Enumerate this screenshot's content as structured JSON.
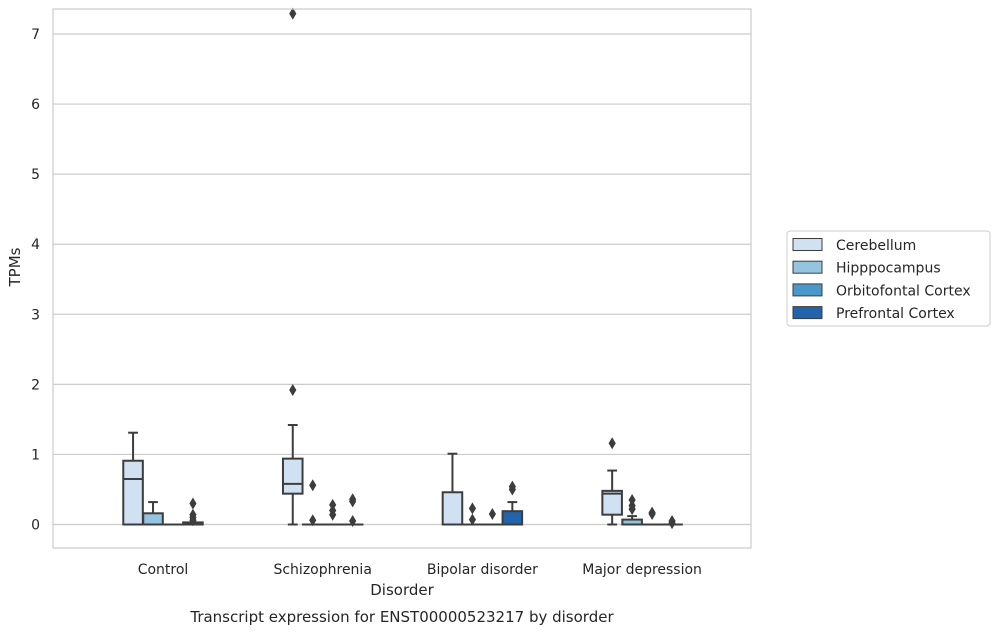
{
  "chart_data": {
    "type": "boxplot",
    "title": "Transcript expression for ENST00000523217 by disorder",
    "xlabel": "Disorder",
    "ylabel": "TPMs",
    "ylim": [
      -0.35,
      7.65
    ],
    "yticks": [
      0,
      1,
      2,
      3,
      4,
      5,
      6,
      7
    ],
    "grid": true,
    "legend_position": "right",
    "categories": [
      "Control",
      "Schizophrenia",
      "Bipolar disorder",
      "Major depression"
    ],
    "series": [
      {
        "name": "Cerebellum",
        "color": "#d0e1f2",
        "boxes": [
          {
            "whislo": 0,
            "q1": 0,
            "med": 0.65,
            "q3": 0.91,
            "whishi": 1.31,
            "fliers": []
          },
          {
            "whislo": 0,
            "q1": 0.44,
            "med": 0.58,
            "q3": 0.94,
            "whishi": 1.42,
            "fliers": [
              1.92,
              7.29
            ]
          },
          {
            "whislo": 0,
            "q1": 0,
            "med": 0,
            "q3": 0.46,
            "whishi": 1.01,
            "fliers": []
          },
          {
            "whislo": 0,
            "q1": 0.14,
            "med": 0.44,
            "q3": 0.48,
            "whishi": 0.77,
            "fliers": [
              1.16
            ]
          }
        ]
      },
      {
        "name": "Hipppocampus",
        "color": "#94c4df",
        "boxes": [
          {
            "whislo": 0,
            "q1": 0,
            "med": 0,
            "q3": 0.16,
            "whishi": 0.32,
            "fliers": []
          },
          {
            "whislo": 0,
            "q1": 0,
            "med": 0,
            "q3": 0,
            "whishi": 0,
            "fliers": [
              0.06,
              0.56
            ]
          },
          {
            "whislo": 0,
            "q1": 0,
            "med": 0,
            "q3": 0,
            "whishi": 0,
            "fliers": [
              0.07,
              0.23
            ]
          },
          {
            "whislo": 0,
            "q1": 0,
            "med": 0,
            "q3": 0.07,
            "whishi": 0.12,
            "fliers": [
              0.22,
              0.27,
              0.35
            ]
          }
        ]
      },
      {
        "name": "Orbitofontal Cortex",
        "color": "#4a98c9",
        "boxes": [
          {
            "whislo": 0,
            "q1": 0,
            "med": 0,
            "q3": 0,
            "whishi": 0,
            "fliers": []
          },
          {
            "whislo": 0,
            "q1": 0,
            "med": 0,
            "q3": 0,
            "whishi": 0,
            "fliers": [
              0.14,
              0.2,
              0.28
            ]
          },
          {
            "whislo": 0,
            "q1": 0,
            "med": 0,
            "q3": 0,
            "whishi": 0,
            "fliers": [
              0.15
            ]
          },
          {
            "whislo": 0,
            "q1": 0,
            "med": 0,
            "q3": 0,
            "whishi": 0,
            "fliers": [
              0.15,
              0.17
            ]
          }
        ]
      },
      {
        "name": "Prefrontal Cortex",
        "color": "#2164ab",
        "boxes": [
          {
            "whislo": 0,
            "q1": 0,
            "med": 0,
            "q3": 0.03,
            "whishi": 0.03,
            "fliers": [
              0.06,
              0.1,
              0.14,
              0.3
            ]
          },
          {
            "whislo": 0,
            "q1": 0,
            "med": 0,
            "q3": 0,
            "whishi": 0,
            "fliers": [
              0.05,
              0.33,
              0.36
            ]
          },
          {
            "whislo": 0,
            "q1": 0,
            "med": 0,
            "q3": 0.19,
            "whishi": 0.32,
            "fliers": [
              0.5,
              0.54
            ]
          },
          {
            "whislo": 0,
            "q1": 0,
            "med": 0,
            "q3": 0,
            "whishi": 0,
            "fliers": [
              0.02,
              0.05
            ]
          }
        ]
      }
    ]
  }
}
